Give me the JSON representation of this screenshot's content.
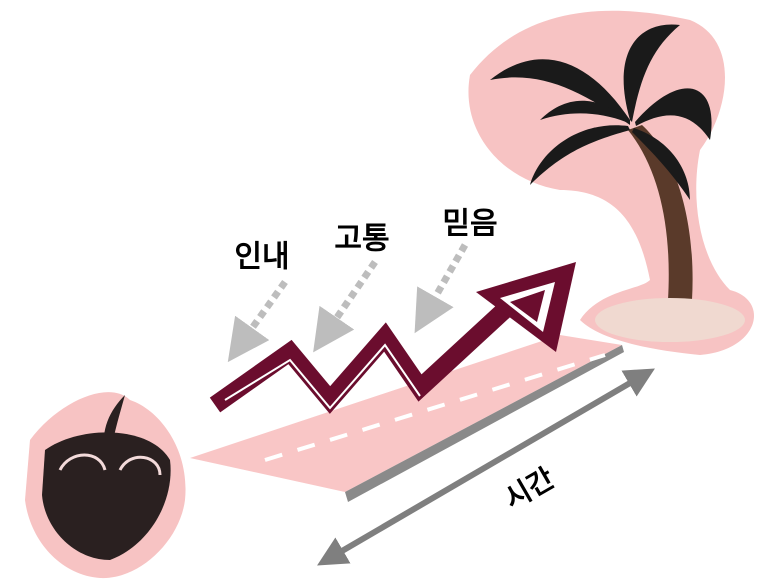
{
  "labels": [
    "인내",
    "고통",
    "믿음"
  ],
  "axis_label": "시간"
}
